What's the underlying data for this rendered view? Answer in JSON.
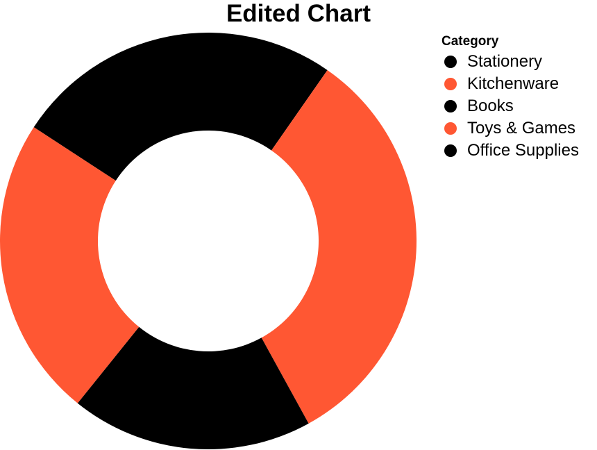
{
  "chart_data": {
    "type": "pie",
    "title": "Edited Chart",
    "hole": 0.53,
    "legend_title": "Category",
    "legend_position": "top-right",
    "categories": [
      "Stationery",
      "Kitchenware",
      "Books",
      "Toys & Games",
      "Office Supplies"
    ],
    "values": [
      25.5,
      32.3,
      18.8,
      23.4,
      0
    ],
    "colors": [
      "#000000",
      "#FF5733",
      "#000000",
      "#FF5733",
      "#000000"
    ]
  }
}
